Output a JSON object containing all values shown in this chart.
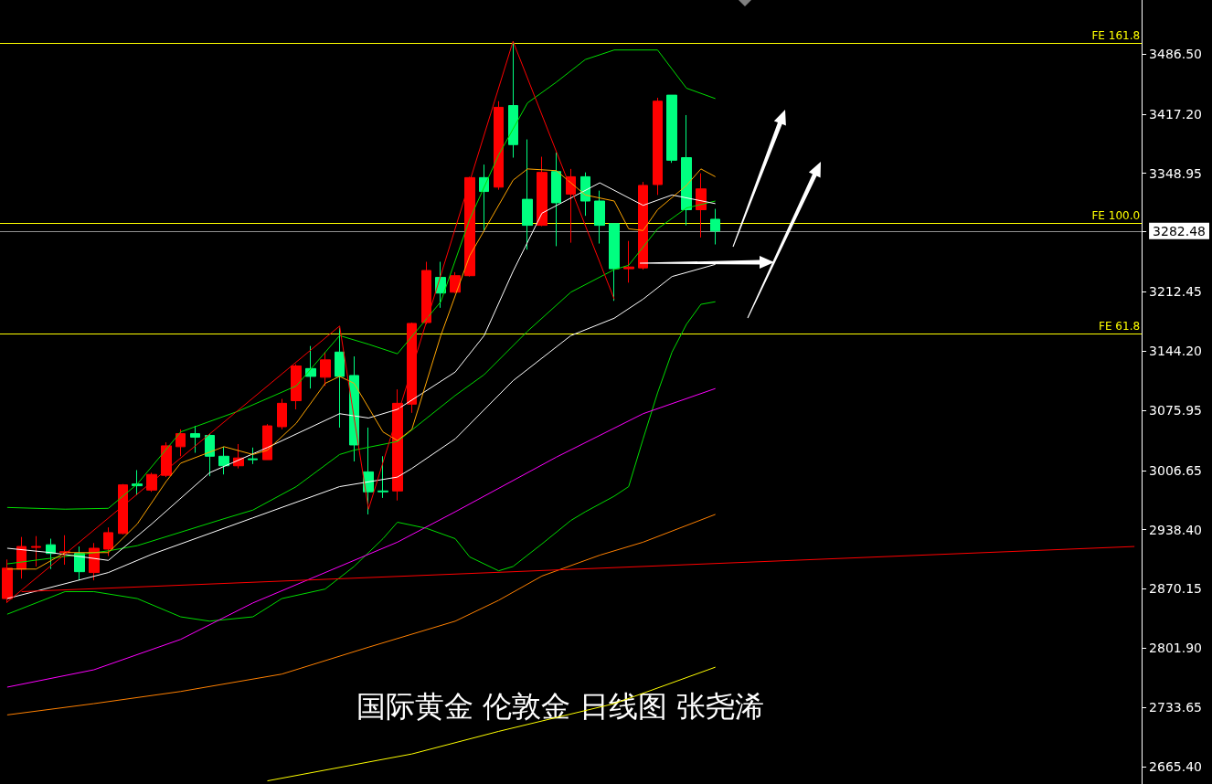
{
  "chart_data": {
    "type": "candlestick",
    "title": "国际黄金 伦敦金 日线图 张尧浠",
    "categories": [
      null,
      null,
      null,
      null,
      null,
      null,
      null,
      null,
      null,
      null,
      null,
      null,
      null,
      null,
      null,
      null,
      null,
      null,
      null,
      null,
      null,
      null,
      null,
      null,
      null,
      null,
      null,
      null,
      null,
      null,
      null,
      null,
      null,
      null,
      null,
      null,
      null,
      null,
      null,
      null,
      null,
      null,
      null,
      null,
      null,
      null,
      null,
      null,
      null,
      null,
      null,
      null,
      null,
      null,
      null,
      null,
      null,
      null,
      null,
      null,
      null,
      null,
      null,
      null,
      null,
      null,
      null,
      null,
      null,
      null,
      null,
      null,
      null,
      null,
      null,
      null,
      null,
      null,
      null
    ],
    "ohlc": [
      [
        2859,
        2904,
        2854,
        2894
      ],
      [
        2893,
        2930,
        2882,
        2919
      ],
      [
        2918,
        2931,
        2896,
        2919
      ],
      [
        2921,
        2928,
        2893,
        2911
      ],
      [
        2913,
        2932,
        2898,
        2912
      ],
      [
        2911,
        2919,
        2880,
        2890
      ],
      [
        2889,
        2923,
        2880,
        2917
      ],
      [
        2916,
        2941,
        2908,
        2935
      ],
      [
        2934,
        2991,
        2933,
        2990
      ],
      [
        2989,
        3007,
        2978,
        2991
      ],
      [
        2984,
        3004,
        2982,
        3002
      ],
      [
        3001,
        3039,
        2999,
        3035
      ],
      [
        3034,
        3054,
        3023,
        3049
      ],
      [
        3049,
        3058,
        3027,
        3045
      ],
      [
        3047,
        3049,
        3000,
        3023
      ],
      [
        3023,
        3034,
        3002,
        3012
      ],
      [
        3012,
        3037,
        3009,
        3021
      ],
      [
        3019,
        3033,
        3014,
        3020
      ],
      [
        3019,
        3060,
        3019,
        3058
      ],
      [
        3057,
        3089,
        3054,
        3084
      ],
      [
        3087,
        3129,
        3077,
        3127
      ],
      [
        3124,
        3150,
        3101,
        3115
      ],
      [
        3114,
        3143,
        3104,
        3134
      ],
      [
        3143,
        3171,
        3056,
        3115
      ],
      [
        3116,
        3138,
        3017,
        3036
      ],
      [
        3005,
        3056,
        2956,
        2982
      ],
      [
        2982,
        3023,
        2975,
        2983
      ],
      [
        2983,
        3100,
        2972,
        3084
      ],
      [
        3083,
        3177,
        3073,
        3176
      ],
      [
        3177,
        3247,
        3175,
        3237
      ],
      [
        3229,
        3247,
        3194,
        3211
      ],
      [
        3212,
        3235,
        3211,
        3231
      ],
      [
        3231,
        3345,
        3230,
        3344
      ],
      [
        3344,
        3359,
        3283,
        3328
      ],
      [
        3333,
        3432,
        3330,
        3425
      ],
      [
        3427,
        3501,
        3367,
        3382
      ],
      [
        3319,
        3388,
        3261,
        3289
      ],
      [
        3289,
        3368,
        3288,
        3350
      ],
      [
        3351,
        3373,
        3265,
        3315
      ],
      [
        3325,
        3354,
        3269,
        3345
      ],
      [
        3345,
        3350,
        3300,
        3317
      ],
      [
        3317,
        3329,
        3268,
        3289
      ],
      [
        3291,
        3291,
        3202,
        3239
      ],
      [
        3239,
        3271,
        3223,
        3241
      ],
      [
        3240,
        3339,
        3238,
        3335
      ],
      [
        3336,
        3436,
        3324,
        3432
      ],
      [
        3439,
        3439,
        3361,
        3364
      ],
      [
        3367,
        3416,
        3289,
        3307
      ],
      [
        3307,
        3349,
        3275,
        3331
      ],
      [
        3296,
        3308,
        3267,
        3282.48
      ],
      null,
      null,
      null,
      null,
      null,
      null,
      null,
      null,
      null,
      null,
      null,
      null,
      null,
      null,
      null,
      null,
      null,
      null,
      null,
      null,
      null,
      null,
      null,
      null,
      null,
      null,
      null,
      null,
      null
    ],
    "colors": [
      "#ff0000",
      "#ff0000",
      "#ff0000",
      "#00ff80",
      "#ff0000",
      "#00ff80",
      "#ff0000",
      "#ff0000",
      "#ff0000",
      "#00ff80",
      "#ff0000",
      "#ff0000",
      "#ff0000",
      "#00ff80",
      "#00ff80",
      "#00ff80",
      "#ff0000",
      "#00ff80",
      "#ff0000",
      "#ff0000",
      "#ff0000",
      "#00ff80",
      "#ff0000",
      "#00ff80",
      "#00ff80",
      "#00ff80",
      "#00ff80",
      "#ff0000",
      "#ff0000",
      "#ff0000",
      "#00ff80",
      "#ff0000",
      "#ff0000",
      "#00ff80",
      "#ff0000",
      "#00ff80",
      "#00ff80",
      "#ff0000",
      "#00ff80",
      "#ff0000",
      "#00ff80",
      "#00ff80",
      "#00ff80",
      "#ff0000",
      "#ff0000",
      "#ff0000",
      "#00ff80",
      "#00ff80",
      "#ff0000",
      "#00ff80",
      null,
      null,
      null,
      null,
      null,
      null,
      null,
      null,
      null,
      null,
      null,
      null,
      null,
      null,
      null,
      null,
      null,
      null,
      null,
      null,
      null,
      null,
      null,
      null,
      null,
      null,
      null,
      null,
      null
    ],
    "series": [
      {
        "type": "line",
        "color": "#00dd00",
        "values": [
          2964,
          null,
          null,
          null,
          2962,
          null,
          null,
          2963,
          null,
          2991,
          null,
          null,
          3051,
          null,
          null,
          null,
          3075,
          null,
          null,
          null,
          3104,
          null,
          null,
          3162,
          null,
          3152,
          null,
          3141,
          null,
          null,
          3201,
          null,
          3296,
          null,
          3370,
          null,
          3430,
          null,
          3454,
          null,
          3480,
          null,
          3491,
          null,
          null,
          3491,
          null,
          3447,
          null,
          3435,
          null,
          null,
          null,
          null,
          null,
          null,
          null,
          null,
          null,
          null,
          null,
          null,
          null,
          null,
          null,
          null,
          null,
          null,
          null,
          null,
          null,
          null,
          null,
          null,
          null,
          null,
          null,
          null,
          null
        ]
      },
      {
        "type": "line",
        "color": "#00dd00",
        "values": [
          2841,
          null,
          null,
          null,
          2867,
          null,
          2867,
          null,
          null,
          2859,
          null,
          null,
          2838,
          null,
          2833,
          null,
          null,
          2838,
          null,
          2859,
          null,
          null,
          2870,
          null,
          2896,
          null,
          2928,
          2947,
          null,
          2940,
          null,
          2928,
          2907,
          null,
          2891,
          2896,
          null,
          2922,
          null,
          2949,
          2959,
          null,
          2977,
          2988,
          3043,
          3096,
          3143,
          3175,
          3198,
          3201,
          null,
          null,
          null,
          null,
          null,
          null,
          null,
          null,
          null,
          null,
          null,
          null,
          null,
          null,
          null,
          null,
          null,
          null,
          null,
          null,
          null,
          null,
          null,
          null,
          null,
          null,
          null,
          null,
          null
        ]
      },
      {
        "type": "line",
        "color": "#00dd00",
        "values": [
          2899,
          null,
          null,
          null,
          null,
          null,
          null,
          2914,
          null,
          2920,
          null,
          null,
          null,
          null,
          null,
          2951,
          null,
          2961,
          null,
          null,
          2988,
          null,
          null,
          3025,
          3030,
          null,
          null,
          3040,
          null,
          null,
          null,
          3093,
          null,
          3117,
          null,
          null,
          3167,
          null,
          null,
          3212,
          null,
          null,
          3238,
          3243,
          null,
          3285,
          null,
          3309,
          null,
          3317,
          null,
          null,
          null,
          null,
          null,
          null,
          null,
          null,
          null,
          null,
          null,
          null,
          null,
          null,
          null,
          null,
          null,
          null,
          null,
          null,
          null,
          null,
          null,
          null,
          null,
          null,
          null,
          null,
          null
        ]
      },
      {
        "type": "line",
        "color": "#ffffff",
        "values": [
          2917,
          null,
          null,
          2912,
          null,
          null,
          null,
          2903,
          null,
          null,
          2945,
          null,
          null,
          null,
          3004,
          null,
          null,
          null,
          3033,
          null,
          null,
          null,
          null,
          3072,
          null,
          3067,
          null,
          3077,
          null,
          null,
          null,
          3120,
          null,
          3162,
          null,
          3236,
          null,
          3303,
          null,
          null,
          null,
          3338,
          null,
          null,
          3312,
          null,
          3324,
          null,
          null,
          3314,
          null,
          null,
          null,
          null,
          null,
          null,
          null,
          null,
          null,
          null,
          null,
          null,
          null,
          null,
          null,
          null,
          null,
          null,
          null,
          null,
          null,
          null,
          null,
          null,
          null,
          null,
          null,
          null,
          null
        ]
      },
      {
        "type": "line",
        "color": "#ffffff",
        "values": [
          2859,
          null,
          null,
          null,
          null,
          null,
          null,
          2889,
          null,
          null,
          2910,
          null,
          null,
          null,
          null,
          null,
          null,
          2952,
          null,
          null,
          null,
          null,
          null,
          2988,
          null,
          null,
          null,
          2999,
          3009,
          null,
          null,
          3043,
          null,
          null,
          null,
          3110,
          null,
          null,
          null,
          3162,
          null,
          null,
          3182,
          null,
          3204,
          null,
          3230,
          null,
          null,
          3244,
          null,
          null,
          null,
          null,
          null,
          null,
          null,
          null,
          null,
          null,
          null,
          null,
          null,
          null,
          null,
          null,
          null,
          null,
          null,
          null,
          null,
          null,
          null,
          null,
          null,
          null,
          null,
          null,
          null
        ]
      },
      {
        "type": "line",
        "color": "#ffa500",
        "values": [
          2893,
          null,
          2893,
          null,
          2912,
          null,
          null,
          2912,
          null,
          2945,
          null,
          2994,
          3015,
          null,
          null,
          3034,
          null,
          3025,
          3030,
          null,
          3061,
          null,
          3107,
          3115,
          3107,
          null,
          3051,
          3041,
          3054,
          null,
          3162,
          null,
          3254,
          null,
          null,
          3341,
          3354,
          null,
          3352,
          3338,
          3324,
          null,
          3317,
          3285,
          3283,
          3307,
          null,
          3335,
          3354,
          3345,
          null,
          null,
          null,
          null,
          null,
          null,
          null,
          null,
          null,
          null,
          null,
          null,
          null,
          null,
          null,
          null,
          null,
          null,
          null,
          null,
          null,
          null,
          null,
          null,
          null,
          null,
          null,
          null,
          null
        ]
      },
      {
        "type": "line",
        "color": "#ff00ff",
        "values": [
          2757,
          null,
          null,
          null,
          null,
          null,
          2777,
          null,
          null,
          null,
          null,
          null,
          2812,
          null,
          null,
          null,
          null,
          2854,
          null,
          null,
          null,
          2882,
          null,
          null,
          null,
          null,
          null,
          2924,
          null,
          null,
          null,
          2959,
          null,
          null,
          null,
          null,
          null,
          null,
          3022,
          null,
          null,
          null,
          null,
          null,
          3072,
          null,
          null,
          null,
          null,
          3101,
          null,
          null,
          null,
          null,
          null,
          null,
          null,
          null,
          null,
          null,
          null,
          null,
          null,
          null,
          null,
          null,
          null,
          null,
          null,
          null,
          null,
          null,
          null,
          null,
          null,
          null,
          null,
          null,
          null
        ]
      },
      {
        "type": "line",
        "color": "#ff8000",
        "values": [
          2725,
          null,
          null,
          null,
          null,
          null,
          2738,
          null,
          null,
          null,
          null,
          null,
          2752,
          null,
          null,
          null,
          null,
          null,
          null,
          2772,
          null,
          null,
          null,
          null,
          null,
          2803,
          null,
          null,
          null,
          null,
          null,
          2833,
          null,
          null,
          2857,
          null,
          null,
          2885,
          null,
          null,
          null,
          2909,
          null,
          null,
          2924,
          null,
          null,
          null,
          null,
          2956,
          null,
          null,
          null,
          null,
          null,
          null,
          null,
          null,
          null,
          null,
          null,
          null,
          null,
          null,
          null,
          null,
          null,
          null,
          null,
          null,
          null,
          null,
          null,
          null,
          null,
          null,
          null,
          null,
          null
        ]
      },
      {
        "type": "line",
        "color": "#ffff00",
        "values": [
          null,
          null,
          null,
          null,
          null,
          null,
          null,
          null,
          null,
          null,
          null,
          null,
          null,
          null,
          null,
          null,
          null,
          null,
          2649,
          null,
          null,
          null,
          null,
          null,
          null,
          null,
          null,
          null,
          2680,
          null,
          null,
          null,
          null,
          null,
          2706,
          null,
          null,
          null,
          null,
          null,
          null,
          null,
          2738,
          null,
          null,
          null,
          null,
          null,
          null,
          2780,
          null,
          null,
          null,
          null,
          null,
          null,
          null,
          null,
          null,
          null,
          null,
          null,
          null,
          null,
          null,
          null,
          null,
          null,
          null,
          null,
          null,
          null,
          null,
          null,
          null,
          null,
          null,
          null,
          null
        ]
      },
      {
        "type": "line",
        "color": "#ff0000",
        "values": [
          null,
          2867,
          null,
          null,
          null,
          null,
          null,
          null,
          null,
          null,
          null,
          null,
          null,
          null,
          null,
          null,
          null,
          null,
          null,
          null,
          null,
          null,
          null,
          null,
          null,
          null,
          null,
          null,
          null,
          null,
          null,
          null,
          null,
          null,
          null,
          null,
          null,
          null,
          null,
          null,
          null,
          null,
          null,
          null,
          null,
          null,
          null,
          null,
          null,
          null,
          null,
          null,
          null,
          null,
          null,
          null,
          null,
          null,
          null,
          null,
          null,
          null,
          null,
          null,
          null,
          null,
          null,
          null,
          null,
          null,
          null,
          null,
          null,
          null,
          null,
          null,
          null,
          null,
          2919
        ]
      },
      {
        "type": "line",
        "color": "#ff0000",
        "values": [
          2855,
          null,
          null,
          null,
          null,
          null,
          null,
          null,
          null,
          null,
          null,
          null,
          null,
          null,
          null,
          null,
          null,
          null,
          null,
          null,
          null,
          null,
          null,
          3173,
          null,
          2962,
          null,
          null,
          null,
          null,
          null,
          null,
          null,
          null,
          null,
          3501,
          null,
          null,
          null,
          null,
          null,
          null,
          3204,
          null,
          null,
          null,
          null,
          null,
          null,
          null,
          null,
          null,
          null,
          null,
          null,
          null,
          null,
          null,
          null,
          null,
          null,
          null,
          null,
          null,
          null,
          null,
          null,
          null,
          null,
          null,
          null,
          null,
          null,
          null,
          null,
          null,
          null,
          null,
          null
        ]
      }
    ],
    "ylim": [
      2645.4,
      3548.6
    ],
    "yticks": [
      {
        "value": 3486.5,
        "label": "3486.50"
      },
      {
        "value": 3417.2,
        "label": "3417.20"
      },
      {
        "value": 3348.95,
        "label": "3348.95"
      },
      {
        "value": 3282.48,
        "label": "3282.48"
      },
      {
        "value": 3212.45,
        "label": "3212.45"
      },
      {
        "value": 3144.2,
        "label": "3144.20"
      },
      {
        "value": 3075.95,
        "label": "3075.95"
      },
      {
        "value": 3006.65,
        "label": "3006.65"
      },
      {
        "value": 2938.4,
        "label": "2938.40"
      },
      {
        "value": 2870.15,
        "label": "2870.15"
      },
      {
        "value": 2801.9,
        "label": "2801.90"
      },
      {
        "value": 2733.65,
        "label": "2733.65"
      },
      {
        "value": 2665.4,
        "label": "2665.40"
      }
    ],
    "ref_lines": [
      {
        "axis": "y",
        "value": 3499,
        "label": "FE 161.8",
        "color": "#ffff00"
      },
      {
        "axis": "y",
        "value": 3292,
        "label": "FE 100.0",
        "color": "#ffff00"
      },
      {
        "axis": "y",
        "value": 3164,
        "label": "FE 61.8",
        "color": "#ffff00"
      },
      {
        "axis": "y",
        "value": 3282.48,
        "color": "#909090"
      }
    ],
    "tick_labels": "y",
    "marker": "none",
    "line_style": "solid"
  }
}
